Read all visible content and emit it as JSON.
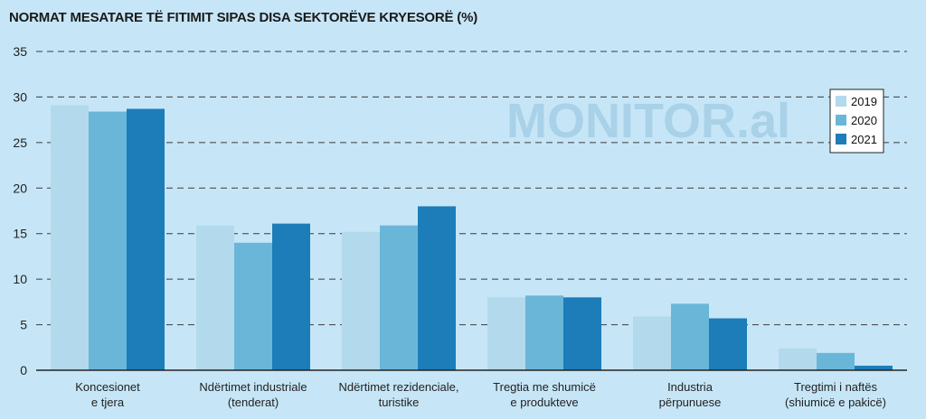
{
  "chart_data": {
    "type": "bar",
    "title": "NORMAT MESATARE TË FITIMIT SIPAS DISA SEKTORËVE KRYESORË (%)",
    "watermark": "MONITOR.al",
    "categories": [
      [
        "Koncesionet",
        "e tjera"
      ],
      [
        "Ndërtimet industriale",
        "(tenderat)"
      ],
      [
        "Ndërtimet rezidenciale,",
        "turistike"
      ],
      [
        "Tregtia me shumicë",
        "e produkteve"
      ],
      [
        "Industria",
        "përpunuese"
      ],
      [
        "Tregtimi i naftës",
        "(shiumicë e pakicë)"
      ]
    ],
    "series": [
      {
        "name": "2019",
        "color": "#b3d9ec",
        "values": [
          29.1,
          15.9,
          15.2,
          8.0,
          5.9,
          2.4
        ]
      },
      {
        "name": "2020",
        "color": "#6ab6d9",
        "values": [
          28.4,
          14.0,
          15.9,
          8.2,
          7.3,
          1.9
        ]
      },
      {
        "name": "2021",
        "color": "#1c7db8",
        "values": [
          28.7,
          16.1,
          18.0,
          8.0,
          5.7,
          0.5
        ]
      }
    ],
    "ylim": [
      0,
      35
    ],
    "yticks": [
      0,
      5,
      10,
      15,
      20,
      25,
      30,
      35
    ],
    "grid": true,
    "legend_position": "top-right"
  }
}
